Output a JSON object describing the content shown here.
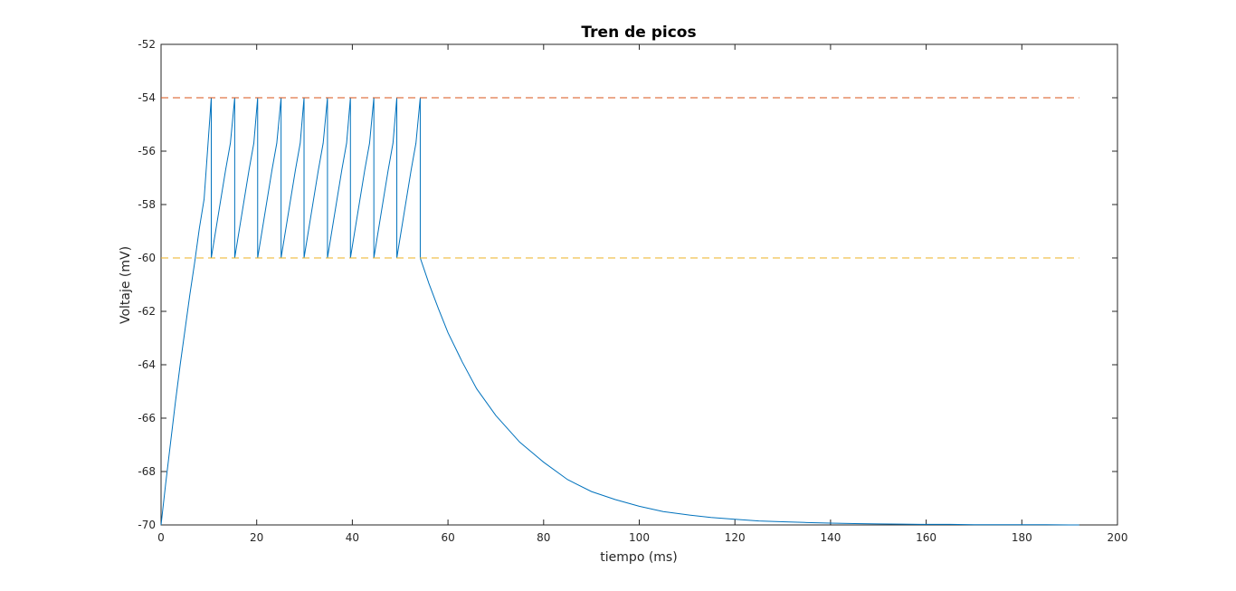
{
  "chart_data": {
    "type": "line",
    "title": "Tren de picos",
    "xlabel": "tiempo (ms)",
    "ylabel": "Voltaje (mV)",
    "xlim": [
      0,
      200
    ],
    "ylim": [
      -70,
      -52
    ],
    "xticks": [
      0,
      20,
      40,
      60,
      80,
      100,
      120,
      140,
      160,
      180,
      200
    ],
    "yticks": [
      -70,
      -68,
      -66,
      -64,
      -62,
      -60,
      -58,
      -56,
      -54,
      -52
    ],
    "grid": false,
    "box": true,
    "colors": {
      "voltage": "#0072BD",
      "threshold": "#D95319",
      "reset": "#EDB120",
      "axis": "#262626"
    },
    "series": [
      {
        "id": "voltage",
        "x": [
          0,
          1,
          2,
          3,
          4,
          5,
          6,
          7,
          8,
          9,
          10.5,
          10.5,
          11.5,
          12.5,
          13.5,
          14.5,
          15.4,
          15.4,
          16.4,
          17.4,
          18.4,
          19.4,
          20.2,
          20.2,
          21.2,
          22.2,
          23.2,
          24.2,
          25.1,
          25.1,
          26.1,
          27.1,
          28.1,
          29.1,
          29.9,
          29.9,
          30.9,
          31.9,
          32.9,
          33.9,
          34.8,
          34.8,
          35.8,
          36.8,
          37.8,
          38.8,
          39.6,
          39.6,
          40.6,
          41.6,
          42.6,
          43.6,
          44.5,
          44.5,
          45.5,
          46.5,
          47.5,
          48.5,
          49.3,
          49.3,
          50.3,
          51.3,
          52.3,
          53.3,
          54.2,
          54.2,
          56,
          58,
          60,
          63,
          66,
          70,
          75,
          80,
          85,
          90,
          95,
          100,
          105,
          110,
          115,
          120,
          125,
          130,
          135,
          140,
          145,
          150,
          155,
          160,
          165,
          170,
          175,
          180,
          185,
          190,
          192
        ],
        "y": [
          -70,
          -68.4,
          -66.9,
          -65.4,
          -64,
          -62.7,
          -61.4,
          -60.2,
          -58.9,
          -57.8,
          -54,
          -60,
          -58.9,
          -57.8,
          -56.7,
          -55.7,
          -54,
          -60,
          -58.9,
          -57.8,
          -56.7,
          -55.7,
          -54,
          -60,
          -58.9,
          -57.8,
          -56.7,
          -55.7,
          -54,
          -60,
          -58.9,
          -57.8,
          -56.7,
          -55.7,
          -54,
          -60,
          -58.9,
          -57.8,
          -56.7,
          -55.7,
          -54,
          -60,
          -58.9,
          -57.8,
          -56.7,
          -55.7,
          -54,
          -60,
          -58.9,
          -57.8,
          -56.7,
          -55.7,
          -54,
          -60,
          -58.9,
          -57.8,
          -56.7,
          -55.7,
          -54,
          -60,
          -58.9,
          -57.8,
          -56.7,
          -55.7,
          -54,
          -60,
          -60.95,
          -61.9,
          -62.8,
          -63.9,
          -64.9,
          -65.9,
          -66.9,
          -67.65,
          -68.3,
          -68.75,
          -69.05,
          -69.3,
          -69.5,
          -69.62,
          -69.72,
          -69.79,
          -69.85,
          -69.88,
          -69.91,
          -69.93,
          -69.95,
          -69.96,
          -69.97,
          -69.98,
          -69.98,
          -69.99,
          -69.99,
          -69.99,
          -69.99,
          -70,
          -70
        ],
        "style": "solid"
      },
      {
        "id": "threshold",
        "x": [
          0,
          192
        ],
        "y": [
          -54,
          -54
        ],
        "style": "dashed"
      },
      {
        "id": "reset",
        "x": [
          0,
          192
        ],
        "y": [
          -60,
          -60
        ],
        "style": "dashed"
      }
    ]
  }
}
